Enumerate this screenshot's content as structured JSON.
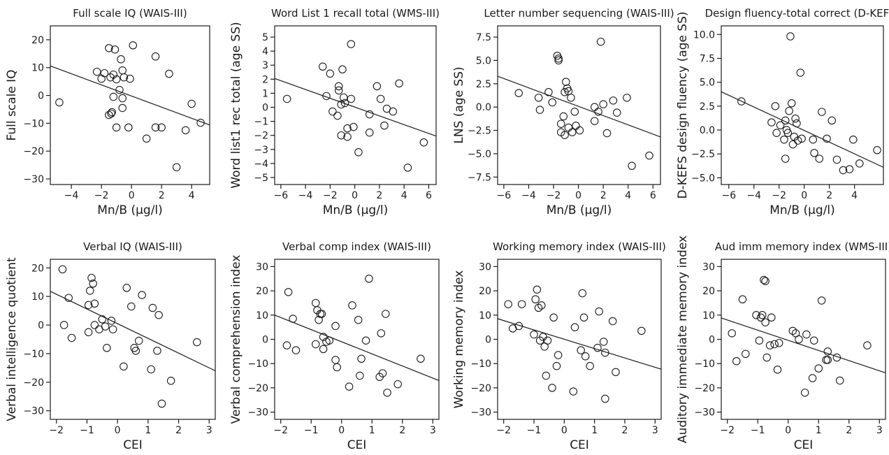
{
  "chart_data": [
    {
      "type": "scatter",
      "title": "Full scale IQ (WAIS-III)",
      "xlabel": "Mn/B (μg/l)",
      "ylabel": "Full scale IQ",
      "xlim": [
        -5.4,
        5.2
      ],
      "ylim": [
        -32,
        25
      ],
      "xticks": [
        -4,
        -2,
        0,
        2,
        4
      ],
      "yticks": [
        -30,
        -20,
        -10,
        0,
        10,
        20
      ],
      "trend_line": [
        [
          -5.4,
          10.6
        ],
        [
          5.2,
          -10.6
        ]
      ],
      "points": [
        [
          -4.8,
          -2.5
        ],
        [
          -2.3,
          8.5
        ],
        [
          -2.0,
          6.0
        ],
        [
          -1.8,
          8.0
        ],
        [
          -1.5,
          17.0
        ],
        [
          -1.4,
          6.5
        ],
        [
          -1.2,
          7.5
        ],
        [
          -1.1,
          16.5
        ],
        [
          -1.0,
          5.8
        ],
        [
          -1.5,
          -7.0
        ],
        [
          -1.35,
          -6.5
        ],
        [
          -1.3,
          -6.0
        ],
        [
          -1.2,
          -0.5
        ],
        [
          -1.0,
          -11.5
        ],
        [
          -0.8,
          2.0
        ],
        [
          -0.7,
          13.0
        ],
        [
          -0.6,
          9.0
        ],
        [
          -0.6,
          -1.0
        ],
        [
          -0.6,
          -4.5
        ],
        [
          -0.5,
          6.5
        ],
        [
          -0.2,
          -11.5
        ],
        [
          -0.1,
          6.0
        ],
        [
          0.1,
          18.0
        ],
        [
          1.0,
          -15.5
        ],
        [
          1.6,
          14.0
        ],
        [
          1.6,
          -11.5
        ],
        [
          2.0,
          -11.5
        ],
        [
          2.5,
          7.8
        ],
        [
          3.0,
          -25.8
        ],
        [
          3.6,
          -12.5
        ],
        [
          4.0,
          -3.0
        ],
        [
          4.6,
          -9.8
        ]
      ]
    },
    {
      "type": "scatter",
      "title": "Word List 1 recall total (WMS-III)",
      "xlabel": "Mn/B (μg/l)",
      "ylabel": "Word list1 rec total (age SS)",
      "xlim": [
        -6.5,
        6.6
      ],
      "ylim": [
        -5.5,
        5.8
      ],
      "xticks": [
        -6,
        -4,
        -2,
        0,
        2,
        4,
        6
      ],
      "yticks": [
        -5,
        -4,
        -3,
        -2,
        -1,
        0,
        1,
        2,
        3,
        4,
        5
      ],
      "trend_line": [
        [
          -6.5,
          2.05
        ],
        [
          6.6,
          -2.05
        ]
      ],
      "points": [
        [
          -5.5,
          0.6
        ],
        [
          -2.6,
          2.9
        ],
        [
          -2.0,
          2.4
        ],
        [
          -2.3,
          0.8
        ],
        [
          -1.8,
          -0.3
        ],
        [
          -1.3,
          1.5
        ],
        [
          -1.3,
          1.2
        ],
        [
          -1.4,
          -0.6
        ],
        [
          -1.1,
          0.2
        ],
        [
          -1.1,
          -2.0
        ],
        [
          -1.0,
          2.7
        ],
        [
          -0.9,
          0.7
        ],
        [
          -0.8,
          0.3
        ],
        [
          -0.6,
          -1.5
        ],
        [
          -0.6,
          -2.1
        ],
        [
          -0.3,
          0.6
        ],
        [
          -0.3,
          4.5
        ],
        [
          -0.1,
          -1.4
        ],
        [
          0.3,
          -3.2
        ],
        [
          1.2,
          -0.5
        ],
        [
          1.2,
          -1.8
        ],
        [
          1.8,
          1.5
        ],
        [
          2.1,
          0.6
        ],
        [
          2.4,
          -1.3
        ],
        [
          2.6,
          -0.1
        ],
        [
          3.1,
          -0.3
        ],
        [
          3.6,
          1.7
        ],
        [
          4.3,
          -4.3
        ],
        [
          5.6,
          -2.5
        ]
      ]
    },
    {
      "type": "scatter",
      "title": "Letter number sequencing (WAIS-III)",
      "xlabel": "Mn/B (μg/l)",
      "ylabel": "LNS (age SS)",
      "xlim": [
        -6.5,
        6.6
      ],
      "ylim": [
        -8.3,
        8.7
      ],
      "xticks": [
        -6,
        -4,
        -2,
        0,
        2,
        4,
        6
      ],
      "yticks": [
        -7.5,
        -5.0,
        -2.5,
        0.0,
        2.5,
        5.0,
        7.5
      ],
      "trend_line": [
        [
          -6.5,
          3.3
        ],
        [
          6.6,
          -3.2
        ]
      ],
      "points": [
        [
          -4.8,
          1.5
        ],
        [
          -3.2,
          1.0
        ],
        [
          -3.1,
          -0.3
        ],
        [
          -2.4,
          1.6
        ],
        [
          -2.1,
          0.5
        ],
        [
          -1.7,
          5.5
        ],
        [
          -1.6,
          5.2
        ],
        [
          -1.6,
          5.0
        ],
        [
          -1.4,
          -1.8
        ],
        [
          -1.4,
          -2.7
        ],
        [
          -1.2,
          -1.0
        ],
        [
          -1.1,
          -3.0
        ],
        [
          -1.1,
          1.6
        ],
        [
          -1.0,
          2.7
        ],
        [
          -0.9,
          2.0
        ],
        [
          -0.8,
          1.7
        ],
        [
          -0.8,
          -2.2
        ],
        [
          -0.6,
          1.0
        ],
        [
          -0.5,
          -2.7
        ],
        [
          -0.3,
          -0.5
        ],
        [
          -0.2,
          -2.0
        ],
        [
          0.1,
          -2.5
        ],
        [
          1.3,
          -1.5
        ],
        [
          1.3,
          0.0
        ],
        [
          1.6,
          -0.5
        ],
        [
          1.8,
          7.0
        ],
        [
          2.0,
          0.3
        ],
        [
          2.3,
          -2.8
        ],
        [
          2.8,
          0.7
        ],
        [
          3.1,
          -0.6
        ],
        [
          3.9,
          1.0
        ],
        [
          4.3,
          -6.3
        ],
        [
          5.7,
          -5.2
        ]
      ]
    },
    {
      "type": "scatter",
      "title": "Design fluency-total correct (D-KEFS)",
      "xlabel": "Mn/B (μg/l)",
      "ylabel": "D-KEFS design fluency (age SS)",
      "xlim": [
        -6.6,
        6.3
      ],
      "ylim": [
        -5.7,
        10.9
      ],
      "xticks": [
        -6,
        -4,
        -2,
        0,
        2,
        4
      ],
      "yticks": [
        -5.0,
        -2.5,
        0.0,
        2.5,
        5.0,
        7.5,
        10.0
      ],
      "trend_line": [
        [
          -6.6,
          4.0
        ],
        [
          6.3,
          -3.9
        ]
      ],
      "points": [
        [
          -5.0,
          3.0
        ],
        [
          -2.6,
          0.8
        ],
        [
          -2.3,
          2.5
        ],
        [
          -2.2,
          -0.3
        ],
        [
          -1.9,
          0.5
        ],
        [
          -1.6,
          -1.0
        ],
        [
          -1.5,
          -3.0
        ],
        [
          -1.5,
          1.0
        ],
        [
          -1.4,
          0.0
        ],
        [
          -1.3,
          -0.3
        ],
        [
          -1.2,
          2.0
        ],
        [
          -1.1,
          9.8
        ],
        [
          -1.0,
          2.8
        ],
        [
          -0.9,
          -1.5
        ],
        [
          -0.8,
          -0.7
        ],
        [
          -0.7,
          1.2
        ],
        [
          -0.6,
          0.7
        ],
        [
          -0.5,
          -1.1
        ],
        [
          -0.3,
          6.0
        ],
        [
          -0.2,
          -0.9
        ],
        [
          0.7,
          -1.0
        ],
        [
          0.8,
          -2.4
        ],
        [
          1.2,
          -3.0
        ],
        [
          1.4,
          1.9
        ],
        [
          1.8,
          -0.9
        ],
        [
          2.2,
          1.0
        ],
        [
          2.6,
          -3.1
        ],
        [
          3.1,
          -4.2
        ],
        [
          3.6,
          -4.1
        ],
        [
          3.9,
          -1.0
        ],
        [
          4.4,
          -3.5
        ],
        [
          5.8,
          -2.1
        ]
      ]
    },
    {
      "type": "scatter",
      "title": "Verbal IQ (WAIS-III)",
      "xlabel": "CEI",
      "ylabel": "Verbal intelligence quotient",
      "xlim": [
        -2.2,
        3.2
      ],
      "ylim": [
        -33,
        23
      ],
      "xticks": [
        -2,
        -1,
        0,
        1,
        2,
        3
      ],
      "yticks": [
        -30,
        -20,
        -10,
        0,
        10,
        20
      ],
      "trend_line": [
        [
          -2.2,
          11.8
        ],
        [
          3.2,
          -16.0
        ]
      ],
      "points": [
        [
          -1.8,
          19.5
        ],
        [
          -1.75,
          0.0
        ],
        [
          -1.6,
          9.5
        ],
        [
          -1.5,
          -4.5
        ],
        [
          -0.95,
          7.0
        ],
        [
          -0.95,
          -2.5
        ],
        [
          -0.9,
          12.0
        ],
        [
          -0.85,
          16.5
        ],
        [
          -0.8,
          14.5
        ],
        [
          -0.75,
          7.5
        ],
        [
          -0.75,
          0.0
        ],
        [
          -0.6,
          -1.5
        ],
        [
          -0.5,
          2.0
        ],
        [
          -0.4,
          -0.5
        ],
        [
          -0.35,
          -8.0
        ],
        [
          -0.2,
          1.5
        ],
        [
          -0.15,
          -1.5
        ],
        [
          0.2,
          -14.5
        ],
        [
          0.3,
          13.0
        ],
        [
          0.45,
          6.5
        ],
        [
          0.55,
          -8.0
        ],
        [
          0.6,
          -9.0
        ],
        [
          0.7,
          -5.5
        ],
        [
          0.8,
          10.5
        ],
        [
          1.1,
          -15.5
        ],
        [
          1.15,
          6.0
        ],
        [
          1.3,
          -9.0
        ],
        [
          1.35,
          3.5
        ],
        [
          1.45,
          -27.5
        ],
        [
          1.75,
          -19.5
        ],
        [
          2.6,
          -6.0
        ]
      ]
    },
    {
      "type": "scatter",
      "title": "Verbal comp index (WAIS-III)",
      "xlabel": "CEI",
      "ylabel": "Verbal comprehension index",
      "xlim": [
        -2.2,
        3.2
      ],
      "ylim": [
        -33,
        33
      ],
      "xticks": [
        -2,
        -1,
        0,
        1,
        2,
        3
      ],
      "yticks": [
        -30,
        -20,
        -10,
        0,
        10,
        20,
        30
      ],
      "trend_line": [
        [
          -2.2,
          10.0
        ],
        [
          3.2,
          -17.0
        ]
      ],
      "points": [
        [
          -1.8,
          -2.5
        ],
        [
          -1.75,
          19.5
        ],
        [
          -1.6,
          8.5
        ],
        [
          -1.5,
          -4.5
        ],
        [
          -0.85,
          15.0
        ],
        [
          -0.85,
          -2.0
        ],
        [
          -0.8,
          12.0
        ],
        [
          -0.75,
          8.0
        ],
        [
          -0.7,
          10.5
        ],
        [
          -0.65,
          10.5
        ],
        [
          -0.6,
          -4.0
        ],
        [
          -0.6,
          1.0
        ],
        [
          -0.5,
          -1.0
        ],
        [
          -0.4,
          -0.5
        ],
        [
          -0.2,
          5.5
        ],
        [
          -0.2,
          -8.5
        ],
        [
          -0.15,
          -11.5
        ],
        [
          0.25,
          -19.5
        ],
        [
          0.35,
          14.0
        ],
        [
          0.55,
          8.0
        ],
        [
          0.6,
          -15.0
        ],
        [
          0.65,
          -8.0
        ],
        [
          0.8,
          -0.5
        ],
        [
          0.9,
          25.0
        ],
        [
          1.25,
          -15.5
        ],
        [
          1.3,
          2.5
        ],
        [
          1.35,
          -14.0
        ],
        [
          1.45,
          10.5
        ],
        [
          1.5,
          -22.0
        ],
        [
          1.85,
          -18.5
        ],
        [
          2.6,
          -8.0
        ]
      ]
    },
    {
      "type": "scatter",
      "title": "Working memory index (WAIS-III)",
      "xlabel": "CEI",
      "ylabel": "Working memory index",
      "xlim": [
        -2.2,
        3.2
      ],
      "ylim": [
        -33,
        33
      ],
      "xticks": [
        -2,
        -1,
        0,
        1,
        2,
        3
      ],
      "yticks": [
        -30,
        -20,
        -10,
        0,
        10,
        20,
        30
      ],
      "trend_line": [
        [
          -2.2,
          8.5
        ],
        [
          3.2,
          -12.3
        ]
      ],
      "points": [
        [
          -1.85,
          14.5
        ],
        [
          -1.7,
          4.5
        ],
        [
          -1.5,
          5.5
        ],
        [
          -1.4,
          14.5
        ],
        [
          -1.0,
          2.0
        ],
        [
          -0.95,
          16.5
        ],
        [
          -0.9,
          20.5
        ],
        [
          -0.85,
          13.0
        ],
        [
          -0.8,
          -0.5
        ],
        [
          -0.75,
          14.0
        ],
        [
          -0.7,
          1.0
        ],
        [
          -0.65,
          -3.0
        ],
        [
          -0.6,
          -15.0
        ],
        [
          -0.55,
          -0.5
        ],
        [
          -0.4,
          -20.0
        ],
        [
          -0.35,
          9.0
        ],
        [
          -0.25,
          -11.0
        ],
        [
          -0.2,
          -6.5
        ],
        [
          0.3,
          -21.5
        ],
        [
          0.35,
          5.0
        ],
        [
          0.55,
          -4.5
        ],
        [
          0.6,
          19.0
        ],
        [
          0.65,
          9.0
        ],
        [
          0.7,
          -7.0
        ],
        [
          0.85,
          -11.0
        ],
        [
          1.1,
          -3.5
        ],
        [
          1.15,
          11.5
        ],
        [
          1.3,
          -1.0
        ],
        [
          1.35,
          -24.5
        ],
        [
          1.35,
          -5.5
        ],
        [
          1.6,
          7.5
        ],
        [
          1.7,
          -13.5
        ],
        [
          2.55,
          3.5
        ]
      ]
    },
    {
      "type": "scatter",
      "title": "Aud imm memory index (WMS-III)",
      "xlabel": "CEI",
      "ylabel": "Auditory immediate memory index",
      "xlim": [
        -2.2,
        3.2
      ],
      "ylim": [
        -33,
        33
      ],
      "xticks": [
        -2,
        -1,
        0,
        1,
        2,
        3
      ],
      "yticks": [
        -30,
        -20,
        -10,
        0,
        10,
        20,
        30
      ],
      "trend_line": [
        [
          -2.2,
          8.8
        ],
        [
          3.2,
          -13.8
        ]
      ],
      "points": [
        [
          -1.85,
          2.5
        ],
        [
          -1.7,
          -9.0
        ],
        [
          -1.5,
          16.5
        ],
        [
          -1.4,
          -6.0
        ],
        [
          -1.05,
          10.0
        ],
        [
          -0.95,
          -0.5
        ],
        [
          -0.9,
          9.0
        ],
        [
          -0.85,
          10.0
        ],
        [
          -0.8,
          24.5
        ],
        [
          -0.75,
          24.0
        ],
        [
          -0.75,
          7.0
        ],
        [
          -0.7,
          -7.5
        ],
        [
          -0.6,
          -2.5
        ],
        [
          -0.55,
          9.0
        ],
        [
          -0.45,
          -2.0
        ],
        [
          -0.35,
          -12.5
        ],
        [
          -0.3,
          -1.5
        ],
        [
          0.15,
          3.5
        ],
        [
          0.25,
          2.5
        ],
        [
          0.35,
          0.0
        ],
        [
          0.55,
          -22.0
        ],
        [
          0.6,
          2.0
        ],
        [
          0.8,
          -16.0
        ],
        [
          0.85,
          -0.5
        ],
        [
          1.0,
          -12.0
        ],
        [
          1.1,
          16.0
        ],
        [
          1.25,
          -8.5
        ],
        [
          1.3,
          -8.5
        ],
        [
          1.3,
          -5.0
        ],
        [
          1.6,
          -7.5
        ],
        [
          1.7,
          -17.0
        ],
        [
          2.6,
          -2.5
        ]
      ]
    }
  ]
}
